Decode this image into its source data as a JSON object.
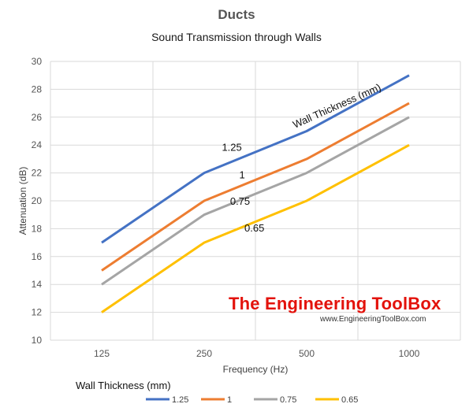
{
  "chart_data": {
    "type": "line",
    "title": "Ducts",
    "subtitle": "Sound Transmission through Walls",
    "xlabel": "Frequency (Hz)",
    "ylabel": "Attenuation (dB)",
    "categories": [
      "125",
      "250",
      "500",
      "1000"
    ],
    "yticks": [
      "10",
      "12",
      "14",
      "16",
      "18",
      "20",
      "22",
      "24",
      "26",
      "28",
      "30"
    ],
    "ylim": [
      10,
      30
    ],
    "grid": true,
    "legend_position": "bottom",
    "legend_title": "Wall Thickness (mm)",
    "series": [
      {
        "name": "1.25",
        "color": "#4472c4",
        "values": [
          17,
          22,
          25,
          29
        ]
      },
      {
        "name": "1",
        "color": "#ed7d31",
        "values": [
          15,
          20,
          23,
          27
        ]
      },
      {
        "name": "0.75",
        "color": "#a5a5a5",
        "values": [
          14,
          19,
          22,
          26
        ]
      },
      {
        "name": "0.65",
        "color": "#ffc000",
        "values": [
          12,
          17,
          20,
          24
        ]
      }
    ],
    "annotations": {
      "curve_label": "Wall Thickness (mm)",
      "series_labels": [
        "1.25",
        "1",
        "0.75",
        "0.65"
      ]
    }
  },
  "watermark": {
    "brand": "The Engineering ToolBox",
    "url": "www.EngineeringToolBox.com"
  }
}
